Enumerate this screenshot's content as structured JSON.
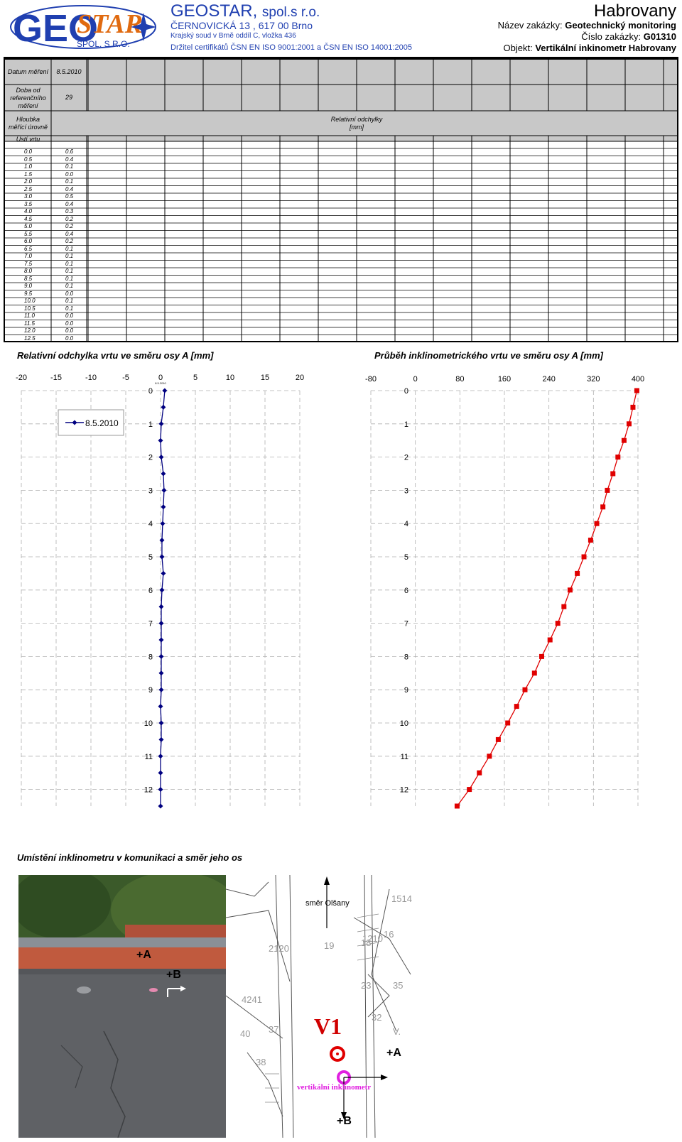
{
  "header": {
    "logo_text": "GEOSTAR SPOL. S R.O.",
    "company_name": "GEOSTAR,",
    "company_suffix": "spol.s r.o.",
    "address": "ČERNOVICKÁ 13 , 617 00 Brno",
    "registry": "Krajský soud v Brně oddíl C, vložka 436",
    "certificates": "Držitel certifikátů ČSN EN ISO 9001:2001 a ČSN EN ISO 14001:2005",
    "site": "Habrovany",
    "order_name_label": "Název zakázky:",
    "order_name": "Geotechnický monitoring",
    "order_number_label": "Číslo zakázky:",
    "order_number": "G01310",
    "object_label": "Objekt:",
    "object": "Vertikální inkinometr Habrovany"
  },
  "table": {
    "date_label": "Datum měření",
    "date_value": "8.5.2010",
    "elapsed_label_1": "Doba od",
    "elapsed_label_2": "referenčního",
    "elapsed_label_3": "měření",
    "elapsed_value": "29",
    "depth_label_1": "Hloubka",
    "depth_label_2": "měřící úrovně",
    "deviation_label": "Relativní odchylky",
    "deviation_unit": "[mm]",
    "mouth_label": "Ústí vrtu",
    "rows": [
      {
        "depth": "0.0",
        "value": "0.6"
      },
      {
        "depth": "0.5",
        "value": "0.4"
      },
      {
        "depth": "1.0",
        "value": "0.1"
      },
      {
        "depth": "1.5",
        "value": "0.0"
      },
      {
        "depth": "2.0",
        "value": "0.1"
      },
      {
        "depth": "2.5",
        "value": "0.4"
      },
      {
        "depth": "3.0",
        "value": "0.5"
      },
      {
        "depth": "3.5",
        "value": "0.4"
      },
      {
        "depth": "4.0",
        "value": "0.3"
      },
      {
        "depth": "4.5",
        "value": "0.2"
      },
      {
        "depth": "5.0",
        "value": "0.2"
      },
      {
        "depth": "5.5",
        "value": "0.4"
      },
      {
        "depth": "6.0",
        "value": "0.2"
      },
      {
        "depth": "6.5",
        "value": "0.1"
      },
      {
        "depth": "7.0",
        "value": "0.1"
      },
      {
        "depth": "7.5",
        "value": "0.1"
      },
      {
        "depth": "8.0",
        "value": "0.1"
      },
      {
        "depth": "8.5",
        "value": "0.1"
      },
      {
        "depth": "9.0",
        "value": "0.1"
      },
      {
        "depth": "9.5",
        "value": "0.0"
      },
      {
        "depth": "10.0",
        "value": "0.1"
      },
      {
        "depth": "10.5",
        "value": "0.1"
      },
      {
        "depth": "11.0",
        "value": "0.0"
      },
      {
        "depth": "11.5",
        "value": "0.0"
      },
      {
        "depth": "12.0",
        "value": "0.0"
      },
      {
        "depth": "12.5",
        "value": "0.0"
      }
    ]
  },
  "chart_data": [
    {
      "type": "line",
      "title": "Relativní odchylka vrtu ve směru osy A [mm]",
      "xlim": [
        -20,
        20
      ],
      "x_ticks": [
        "-20",
        "-15",
        "-10",
        "-5",
        "0",
        "5",
        "10",
        "15",
        "20"
      ],
      "y_ticks": [
        "0",
        "1",
        "2",
        "3",
        "4",
        "5",
        "6",
        "7",
        "8",
        "9",
        "10",
        "11",
        "12"
      ],
      "ylim": [
        0,
        12.5
      ],
      "y_inverted": true,
      "legend_position": "top-left",
      "small_label": "8.5.2010",
      "color": "#000080",
      "series": [
        {
          "name": "8.5.2010",
          "depth": [
            0.0,
            0.5,
            1.0,
            1.5,
            2.0,
            2.5,
            3.0,
            3.5,
            4.0,
            4.5,
            5.0,
            5.5,
            6.0,
            6.5,
            7.0,
            7.5,
            8.0,
            8.5,
            9.0,
            9.5,
            10.0,
            10.5,
            11.0,
            11.5,
            12.0,
            12.5
          ],
          "values": [
            0.6,
            0.4,
            0.1,
            0.0,
            0.1,
            0.4,
            0.5,
            0.4,
            0.3,
            0.2,
            0.2,
            0.4,
            0.2,
            0.1,
            0.1,
            0.1,
            0.1,
            0.1,
            0.1,
            0.0,
            0.1,
            0.1,
            0.0,
            0.0,
            0.0,
            0.0
          ]
        }
      ],
      "grid": true
    },
    {
      "type": "line",
      "title": "Průběh inklinometrického vrtu ve směru osy A [mm]",
      "xlim": [
        -80,
        400
      ],
      "x_ticks": [
        "-80",
        "0",
        "80",
        "160",
        "240",
        "320",
        "400"
      ],
      "y_ticks": [
        "0",
        "1",
        "2",
        "3",
        "4",
        "5",
        "6",
        "7",
        "8",
        "9",
        "10",
        "11",
        "12"
      ],
      "ylim": [
        0,
        12.5
      ],
      "y_inverted": true,
      "color": "#e00000",
      "series": [
        {
          "depth": [
            0.0,
            0.5,
            1.0,
            1.5,
            2.0,
            2.5,
            3.0,
            3.5,
            4.0,
            4.5,
            5.0,
            5.5,
            6.0,
            6.5,
            7.0,
            7.5,
            8.0,
            8.5,
            9.0,
            9.5,
            10.0,
            10.5,
            11.0,
            11.5,
            12.0,
            12.5
          ],
          "values": [
            398,
            391,
            384,
            375,
            364,
            355,
            345,
            337,
            326,
            315,
            303,
            291,
            278,
            267,
            256,
            242,
            227,
            214,
            197,
            182,
            166,
            149,
            133,
            115,
            97,
            75
          ]
        }
      ],
      "grid": true
    }
  ],
  "location": {
    "title": "Umístění inklinometru v komunikaci a směr jeho os",
    "photo_plus_a": "+A",
    "photo_plus_b": "+B",
    "map_direction": "směr Olšany",
    "map_well": "V1",
    "map_instrument": "vertikální inklinometr",
    "map_plus_a": "+A",
    "map_plus_b": "+B",
    "map_labels": [
      "2120",
      "1514",
      "1210",
      "4241",
      "40",
      "37",
      "19",
      "18",
      "16",
      "32",
      "23",
      "V.",
      "35",
      "38"
    ]
  }
}
